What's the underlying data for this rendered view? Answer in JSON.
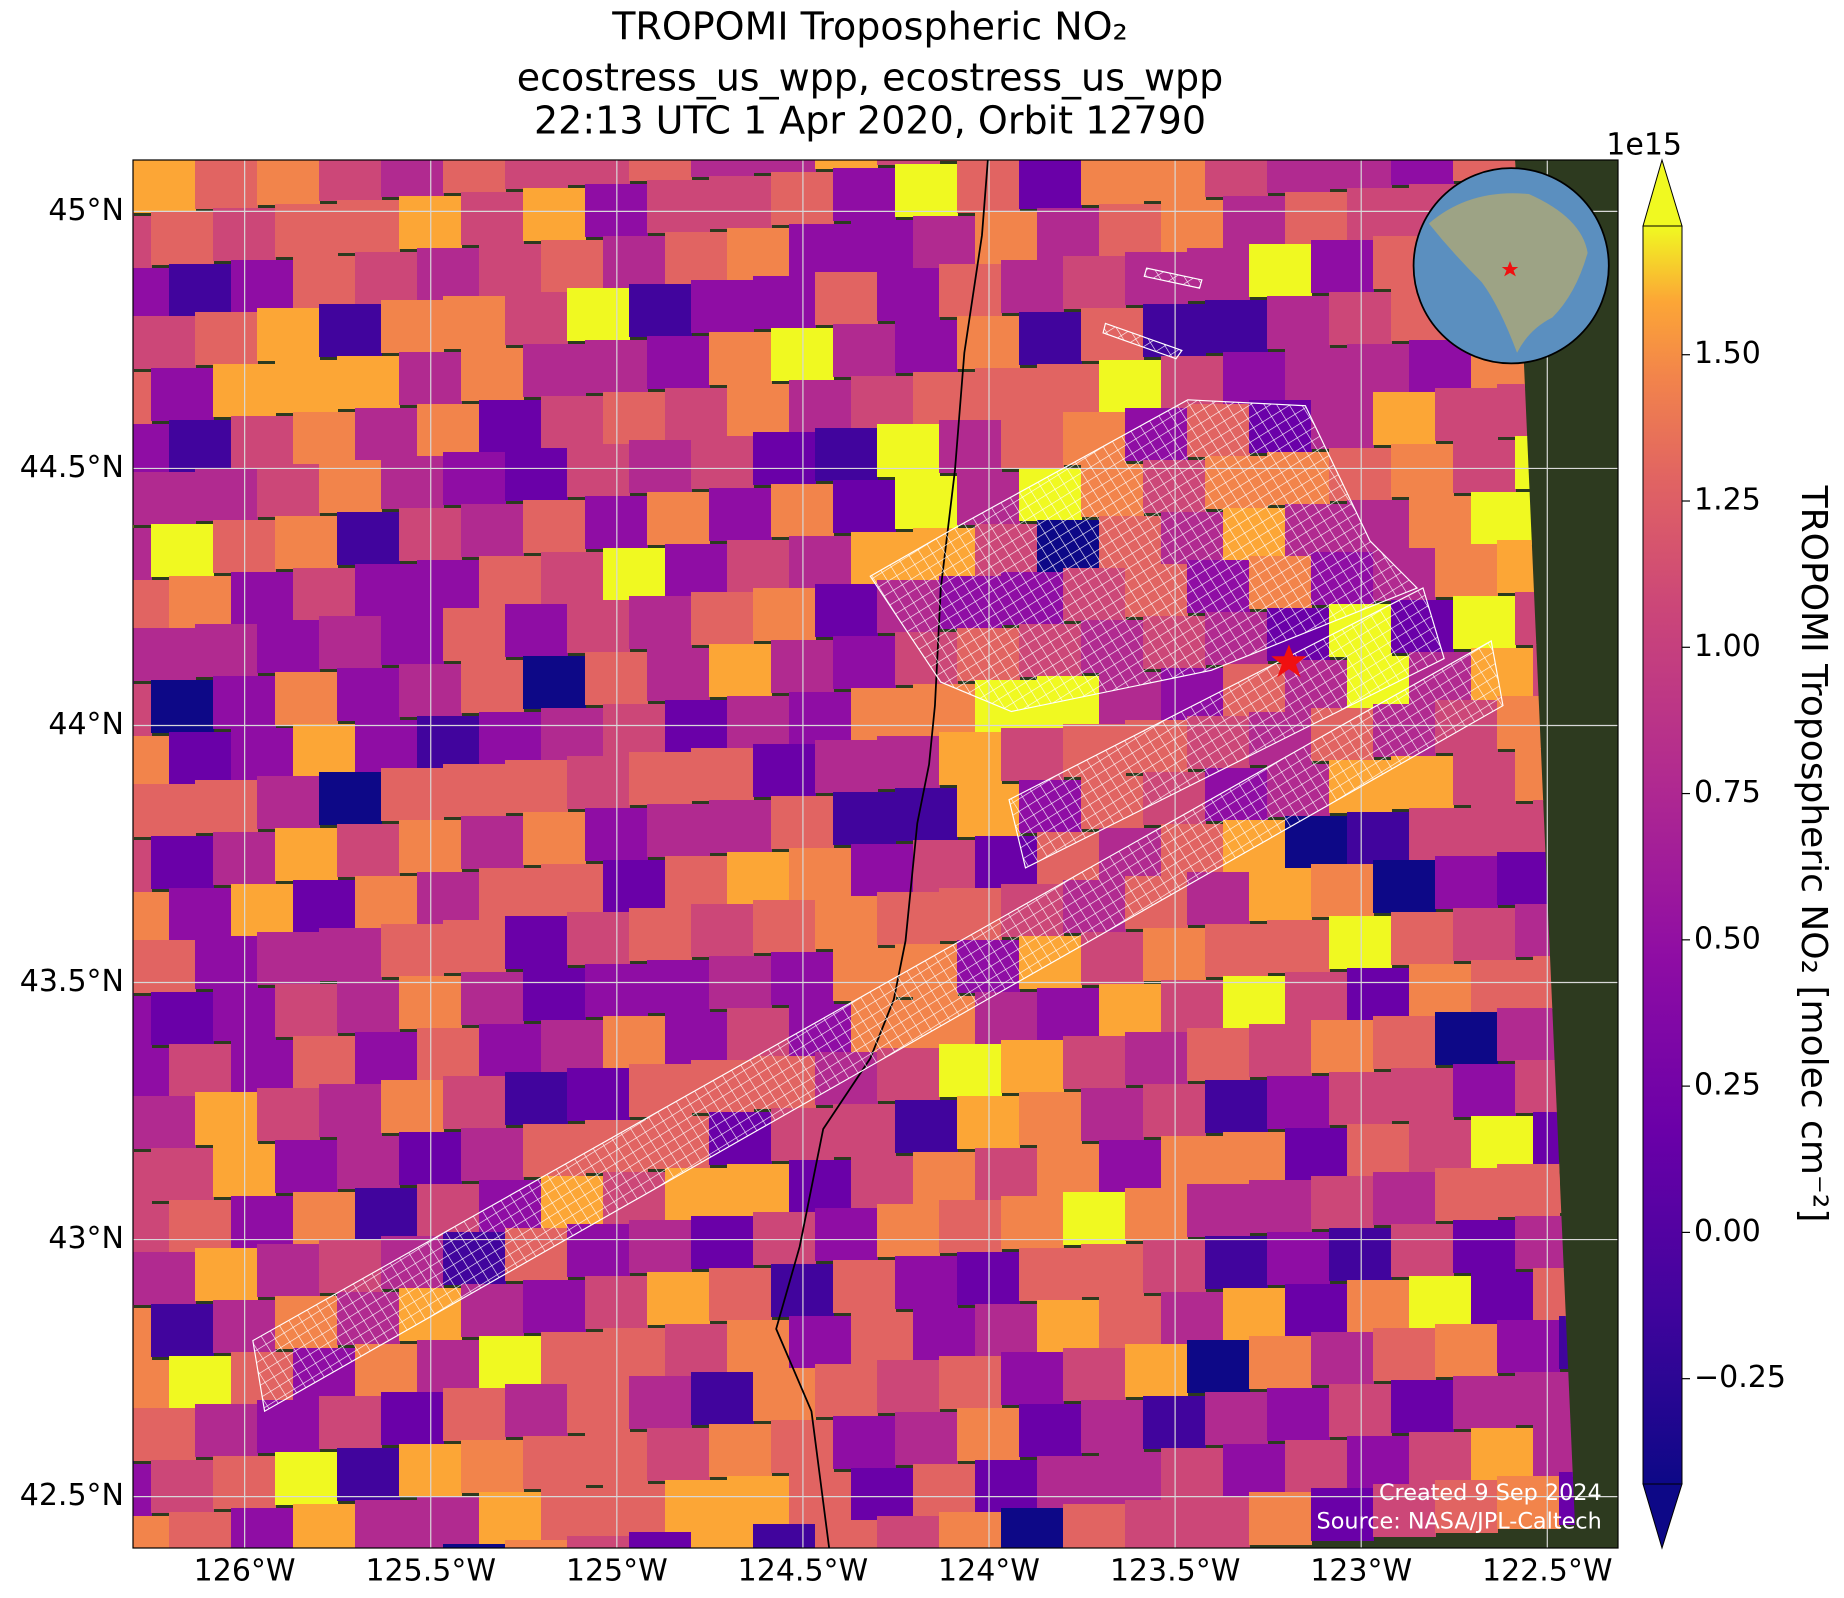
{
  "title": [
    "TROPOMI Tropospheric NO₂",
    "ecostress_us_wpp, ecostress_us_wpp",
    "22:13 UTC 1 Apr 2020, Orbit 12790"
  ],
  "map": {
    "xlim": [
      -126.3,
      -122.31
    ],
    "ylim": [
      42.4,
      45.1
    ],
    "xticks": [
      {
        "value": -126,
        "label": "126°W"
      },
      {
        "value": -125.5,
        "label": "125.5°W"
      },
      {
        "value": -125,
        "label": "125°W"
      },
      {
        "value": -124.5,
        "label": "124.5°W"
      },
      {
        "value": -124,
        "label": "124°W"
      },
      {
        "value": -123.5,
        "label": "123.5°W"
      },
      {
        "value": -123,
        "label": "123°W"
      },
      {
        "value": -122.5,
        "label": "122.5°W"
      }
    ],
    "yticks": [
      {
        "value": 45,
        "label": "45°N"
      },
      {
        "value": 44.5,
        "label": "44.5°N"
      },
      {
        "value": 44,
        "label": "44°N"
      },
      {
        "value": 43.5,
        "label": "43.5°N"
      },
      {
        "value": 43,
        "label": "43°N"
      },
      {
        "value": 42.5,
        "label": "42.5°N"
      }
    ]
  },
  "colorbar": {
    "label": "TROPOMI Tropospheric NO₂ [molec cm⁻²]",
    "offset": "1e15",
    "clim": [
      -0.43,
      1.72
    ],
    "ticks": [
      {
        "value": 1.5,
        "label": "1.50"
      },
      {
        "value": 1.25,
        "label": "1.25"
      },
      {
        "value": 1,
        "label": "1.00"
      },
      {
        "value": 0.75,
        "label": "0.75"
      },
      {
        "value": 0.5,
        "label": "0.50"
      },
      {
        "value": 0.25,
        "label": "0.25"
      },
      {
        "value": 0,
        "label": "0.00"
      },
      {
        "value": -0.25,
        "label": "−0.25"
      }
    ]
  },
  "credits": [
    "Created 9 Sep 2024",
    "Source: NASA/JPL-Caltech"
  ]
}
